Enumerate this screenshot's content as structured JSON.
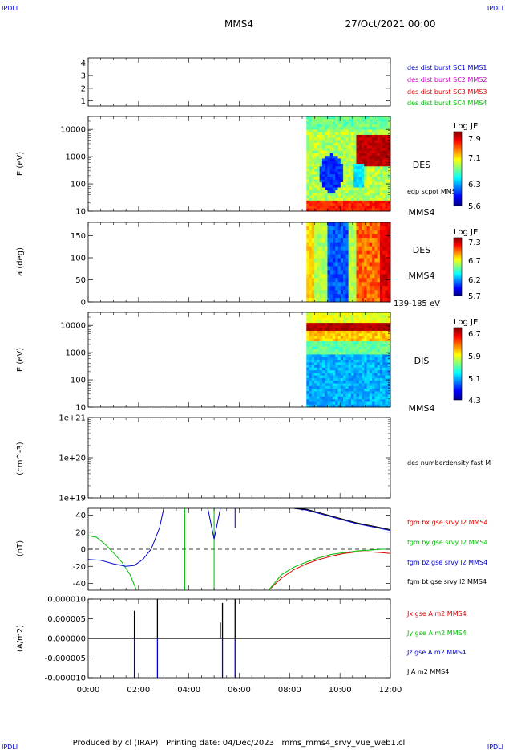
{
  "header": {
    "corner_left": "IPDLI",
    "corner_right": "IPDLI",
    "spacecraft": "MMS4",
    "datetime": "27/Oct/2021 00:00"
  },
  "footer": {
    "text": "Produced by cl (IRAP)   Printing date: 04/Dec/2023   mms_mms4_srvy_vue_web1.cl",
    "corner_left": "IPDLI",
    "corner_right": "IPDLI"
  },
  "colors": {
    "blue": "#0000cc",
    "magenta": "#cc00cc",
    "red": "#dd0000",
    "green": "#00bb00",
    "black": "#000000"
  },
  "chart_data": [
    {
      "type": "line",
      "panel": "location",
      "yticks": [
        "1",
        "2",
        "3",
        "4"
      ],
      "ylim": [
        0.6,
        4.4
      ],
      "legend": [
        {
          "label": "des dist burst SC1 MMS1",
          "color": "#0000cc"
        },
        {
          "label": "des dist burst SC2 MMS2",
          "color": "#cc00cc"
        },
        {
          "label": "des dist burst SC3 MMS3",
          "color": "#dd0000"
        },
        {
          "label": "des dist burst SC4 MMS4",
          "color": "#00bb00"
        }
      ]
    },
    {
      "type": "heatmap",
      "panel": "des-energy",
      "ylabel": "E (eV)",
      "yscale": "log",
      "ylim": [
        10,
        30000
      ],
      "yticks": [
        "10",
        "100",
        "1000",
        "10000"
      ],
      "label": "DES",
      "overlay": "edp scpot MMS4",
      "colorbar": {
        "title": "Log JE",
        "ticks": [
          "7.9",
          "7.1",
          "6.3",
          "5.6"
        ],
        "range": [
          5.6,
          7.9
        ]
      },
      "data_start": "08:40",
      "data_end": "12:00"
    },
    {
      "type": "heatmap",
      "panel": "des-pitch",
      "ylabel": "a (deg)",
      "ylim": [
        0,
        180
      ],
      "yticks": [
        "0",
        "50",
        "100",
        "150"
      ],
      "label": "DES",
      "spacecraft": "MMS4",
      "energy_range": "139-185 eV",
      "colorbar": {
        "title": "Log JE",
        "ticks": [
          "7.3",
          "6.7",
          "6.2",
          "5.7"
        ],
        "range": [
          5.7,
          7.3
        ]
      },
      "data_start": "08:40",
      "data_end": "12:00"
    },
    {
      "type": "heatmap",
      "panel": "dis-energy",
      "ylabel": "E (eV)",
      "yscale": "log",
      "ylim": [
        10,
        30000
      ],
      "yticks": [
        "10",
        "100",
        "1000",
        "10000"
      ],
      "label": "DIS",
      "spacecraft": "MMS4",
      "colorbar": {
        "title": "Log JE",
        "ticks": [
          "6.7",
          "5.9",
          "5.1",
          "4.3"
        ],
        "range": [
          4.3,
          6.7
        ]
      },
      "data_start": "08:40",
      "data_end": "12:00"
    },
    {
      "type": "line",
      "panel": "density",
      "ylabel": "(cm^-3)",
      "yscale": "log",
      "ylim": [
        1e+19,
        1e+21
      ],
      "yticks": [
        "1e+19",
        "1e+20",
        "1e+21"
      ],
      "legend": [
        {
          "label": "des numberdensity fast M",
          "color": "#000000"
        }
      ]
    },
    {
      "type": "line",
      "panel": "magnetic-field",
      "ylabel": "(nT)",
      "ylim": [
        -48,
        48
      ],
      "yticks": [
        "-40",
        "-20",
        "0",
        "20",
        "40"
      ],
      "legend": [
        {
          "label": "fgm bx gse srvy l2 MMS4",
          "color": "#dd0000"
        },
        {
          "label": "fgm by gse srvy l2 MMS4",
          "color": "#00bb00"
        },
        {
          "label": "fgm bz gse srvy l2 MMS4",
          "color": "#0000cc"
        },
        {
          "label": "fgm bt gse srvy l2 MMS4",
          "color": "#000000"
        }
      ],
      "series": [
        {
          "name": "fgm by gse srvy l2 MMS4",
          "color": "#00bb00",
          "x": [
            "00:00",
            "00:20",
            "00:40",
            "01:00",
            "01:20",
            "01:40",
            "01:55"
          ],
          "y": [
            16,
            14,
            6,
            -4,
            -15,
            -30,
            -48
          ]
        },
        {
          "name": "fgm bz gse srvy l2 MMS4",
          "color": "#0000cc",
          "x": [
            "00:00",
            "00:30",
            "01:00",
            "01:30",
            "01:50",
            "02:10",
            "02:30",
            "02:50",
            "03:00"
          ],
          "y": [
            -12,
            -13,
            -17,
            -20,
            -19,
            -12,
            0,
            25,
            48
          ]
        },
        {
          "name": "fgm bx gse srvy l2 MMS4",
          "color": "#dd0000",
          "x": [
            "07:10",
            "07:40",
            "08:10",
            "08:40",
            "09:10",
            "09:40",
            "10:10",
            "10:40",
            "11:10",
            "11:40",
            "12:00"
          ],
          "y": [
            -48,
            -34,
            -24,
            -17,
            -12,
            -8,
            -5,
            -3,
            -3,
            -4,
            -5
          ]
        },
        {
          "name": "fgm by gse srvy l2 MMS4",
          "color": "#00bb00",
          "x": [
            "07:10",
            "07:40",
            "08:10",
            "08:40",
            "09:10",
            "09:40",
            "10:10",
            "10:40",
            "11:10",
            "11:40",
            "12:00"
          ],
          "y": [
            -48,
            -30,
            -21,
            -15,
            -10,
            -6,
            -4,
            -2,
            -1,
            0,
            0
          ]
        },
        {
          "name": "fgm bz gse srvy l2 MMS4",
          "color": "#0000cc",
          "x": [
            "08:10",
            "08:40",
            "09:10",
            "09:40",
            "10:10",
            "10:40",
            "11:10",
            "11:40",
            "12:00"
          ],
          "y": [
            48,
            46,
            42,
            38,
            34,
            30,
            27,
            24,
            22
          ]
        },
        {
          "name": "fgm bt gse srvy l2 MMS4",
          "color": "#000000",
          "x": [
            "08:10",
            "08:40",
            "09:10",
            "09:40",
            "10:10",
            "10:40",
            "11:10",
            "11:40",
            "12:00"
          ],
          "y": [
            48,
            47,
            43,
            39,
            35,
            31,
            28,
            25,
            23
          ]
        }
      ]
    },
    {
      "type": "line",
      "panel": "current-density",
      "ylabel": "(A/m2)",
      "ylim": [
        -1e-05,
        1e-05
      ],
      "yticks": [
        "-0.000010",
        "-0.000005",
        "0.000000",
        "0.000005",
        "0.000010"
      ],
      "legend": [
        {
          "label": "Jx gse A m2 MMS4",
          "color": "#dd0000"
        },
        {
          "label": "Jy gse A m2 MMS4",
          "color": "#00bb00"
        },
        {
          "label": "Jz gse A m2 MMS4",
          "color": "#0000cc"
        },
        {
          "label": "J A m2 MMS4",
          "color": "#000000"
        }
      ],
      "spikes": [
        {
          "t": "01:50",
          "value": 7e-06,
          "color": "#000000"
        },
        {
          "t": "01:50",
          "value": -1e-05,
          "color": "#0000cc"
        },
        {
          "t": "02:45",
          "value": 1e-05,
          "color": "#000000"
        },
        {
          "t": "02:45",
          "value": -1e-05,
          "color": "#0000cc"
        },
        {
          "t": "05:15",
          "value": 4e-06,
          "color": "#000000"
        },
        {
          "t": "05:20",
          "value": 9e-06,
          "color": "#000000"
        },
        {
          "t": "05:20",
          "value": -1e-05,
          "color": "#0000cc"
        },
        {
          "t": "05:50",
          "value": 1e-05,
          "color": "#000000"
        },
        {
          "t": "05:50",
          "value": -1e-05,
          "color": "#0000cc"
        }
      ]
    }
  ],
  "time_axis": {
    "ticks": [
      "00:00",
      "02:00",
      "04:00",
      "06:00",
      "08:00",
      "10:00",
      "12:00"
    ],
    "range": [
      "00:00",
      "12:00"
    ]
  }
}
